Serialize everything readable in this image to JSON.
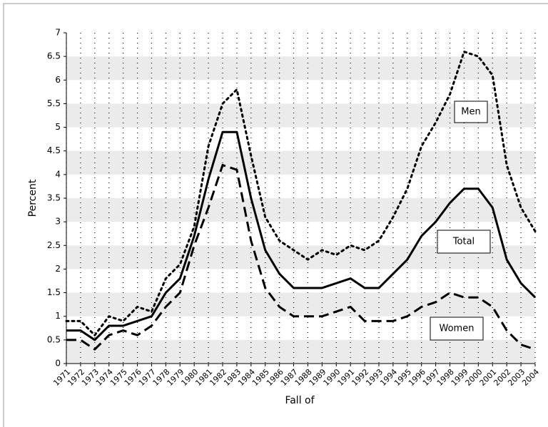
{
  "chart_data": {
    "type": "line",
    "xlabel": "Fall of",
    "ylabel": "Percent",
    "categories": [
      "1971",
      "1972",
      "1973",
      "1974",
      "1975",
      "1976",
      "1977",
      "1978",
      "1979",
      "1980",
      "1981",
      "1982",
      "1983",
      "1984",
      "1985",
      "1986",
      "1987",
      "1988",
      "1989",
      "1990",
      "1991",
      "1992",
      "1993",
      "1994",
      "1995",
      "1996",
      "1997",
      "1998",
      "1999",
      "2000",
      "2001",
      "2002",
      "2003",
      "2004"
    ],
    "series": [
      {
        "name": "Men",
        "color": "#000000",
        "dash": "dotted",
        "values": [
          0.9,
          0.9,
          0.6,
          1.0,
          0.9,
          1.2,
          1.1,
          1.8,
          2.1,
          2.9,
          4.6,
          5.5,
          5.8,
          4.4,
          3.1,
          2.6,
          2.4,
          2.2,
          2.4,
          2.3,
          2.5,
          2.4,
          2.6,
          3.1,
          3.7,
          4.6,
          5.1,
          5.7,
          6.6,
          6.5,
          6.1,
          4.2,
          3.3,
          2.8
        ]
      },
      {
        "name": "Total",
        "color": "#000000",
        "dash": "solid",
        "values": [
          0.7,
          0.7,
          0.5,
          0.8,
          0.8,
          0.9,
          1.0,
          1.5,
          1.8,
          2.7,
          3.9,
          4.9,
          4.9,
          3.5,
          2.4,
          1.9,
          1.6,
          1.6,
          1.6,
          1.7,
          1.8,
          1.6,
          1.6,
          1.9,
          2.2,
          2.7,
          3.0,
          3.4,
          3.7,
          3.7,
          3.3,
          2.2,
          1.7,
          1.4
        ]
      },
      {
        "name": "Women",
        "color": "#000000",
        "dash": "dashed",
        "values": [
          0.5,
          0.5,
          0.3,
          0.6,
          0.7,
          0.6,
          0.8,
          1.2,
          1.5,
          2.5,
          3.3,
          4.2,
          4.1,
          2.6,
          1.6,
          1.2,
          1.0,
          1.0,
          1.0,
          1.1,
          1.2,
          0.9,
          0.9,
          0.9,
          1.0,
          1.2,
          1.3,
          1.5,
          1.4,
          1.4,
          1.2,
          0.7,
          0.4,
          0.3
        ]
      }
    ],
    "ylim": [
      0,
      7
    ],
    "yticks": [
      0,
      0.5,
      1,
      1.5,
      2,
      2.5,
      3,
      3.5,
      4,
      4.5,
      5,
      5.5,
      6,
      6.5,
      7
    ],
    "grid": true
  }
}
